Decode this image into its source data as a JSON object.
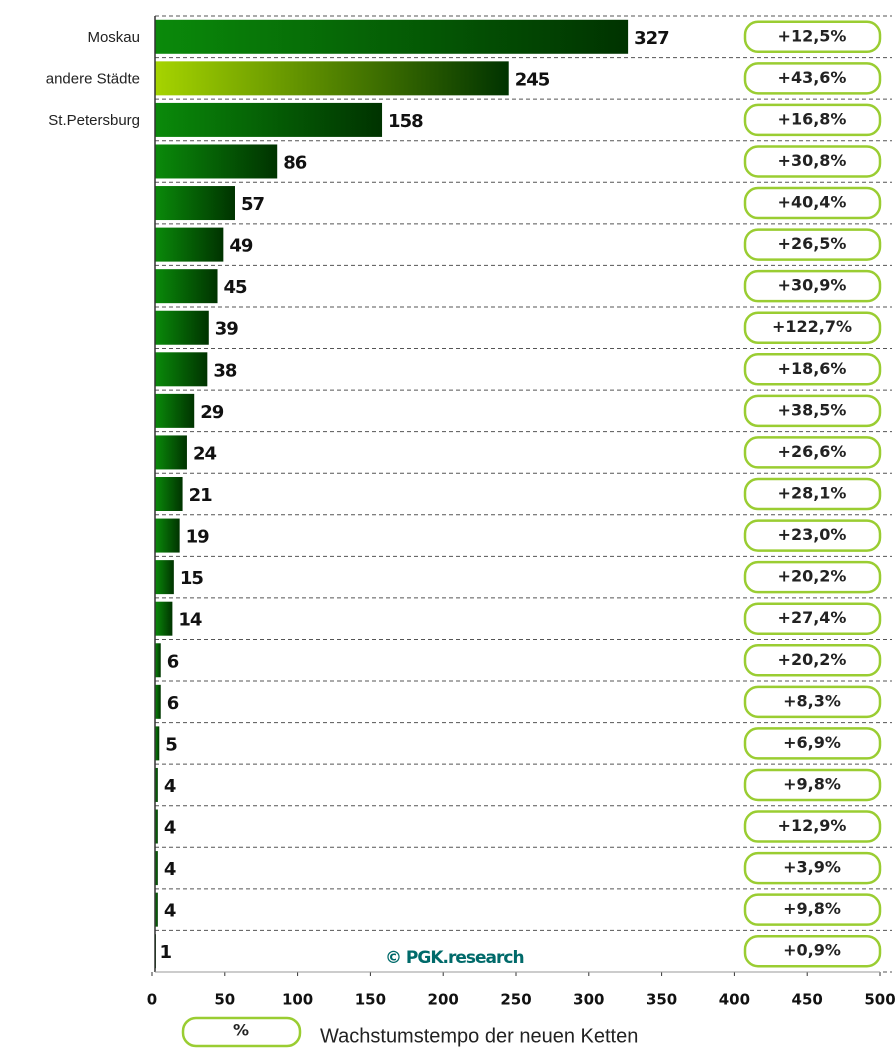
{
  "chart_data": {
    "type": "bar",
    "categories": [
      "Moskau",
      "andere Städte",
      "St.Petersburg",
      null,
      null,
      null,
      null,
      null,
      null,
      null,
      null,
      null,
      null,
      null,
      null,
      null,
      null,
      null,
      null,
      null,
      null,
      null,
      null
    ],
    "values": [
      327,
      245,
      158,
      86,
      57,
      49,
      45,
      39,
      38,
      29,
      24,
      21,
      19,
      15,
      14,
      6,
      6,
      5,
      4,
      4,
      4,
      4,
      1
    ],
    "growth_labels": [
      "+12,5%",
      "+43,6%",
      "+16,8%",
      "+30,8%",
      "+40,4%",
      "+26,5%",
      "+30,9%",
      "+122,7%",
      "+18,6%",
      "+38,5%",
      "+26,6%",
      "+28,1%",
      "+23,0%",
      "+20,2%",
      "+27,4%",
      "+20,2%",
      "+8,3%",
      "+6,9%",
      "+9,8%",
      "+12,9%",
      "+3,9%",
      "+9,8%",
      "+0,9%"
    ],
    "colors": [
      "#0a8a0a",
      "#a6d400",
      "#0a8a0a",
      "#0a8a0a",
      "#0a8a0a",
      "#0a8a0a",
      "#0a8a0a",
      "#0a8a0a",
      "#0a8a0a",
      "#0a8a0a",
      "#0a8a0a",
      "#0a8a0a",
      "#0a8a0a",
      "#0a8a0a",
      "#0a8a0a",
      "#0a8a0a",
      "#0a8a0a",
      "#0a8a0a",
      "#0a8a0a",
      "#0a8a0a",
      "#0a8a0a",
      "#0a8a0a",
      "#0a8a0a"
    ],
    "end_color": "#003300",
    "xlim": [
      0,
      500
    ],
    "xticks": [
      0,
      50,
      100,
      150,
      200,
      250,
      300,
      350,
      400,
      450,
      500
    ],
    "legend_marker": "%",
    "legend_label": "Wachstumstempo der neuen Ketten",
    "watermark": "© PGK.research"
  }
}
